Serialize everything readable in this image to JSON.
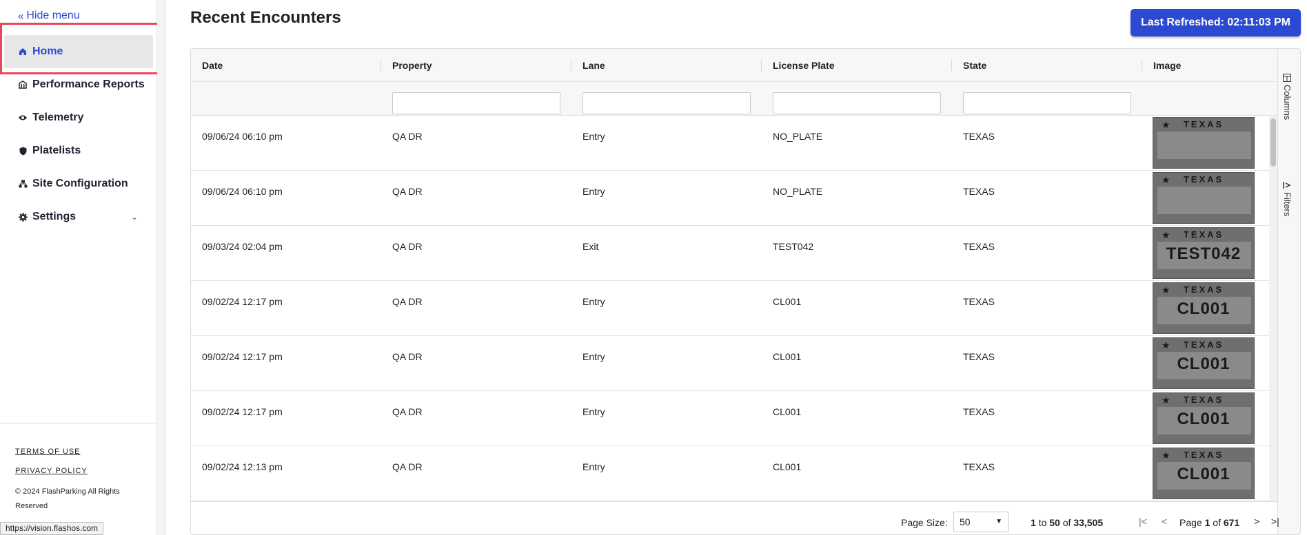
{
  "sidebar": {
    "hide_menu": "Hide menu",
    "items": [
      {
        "label": "Home",
        "icon": "home-icon"
      },
      {
        "label": "Performance Reports",
        "icon": "building-icon"
      },
      {
        "label": "Telemetry",
        "icon": "eye-icon"
      },
      {
        "label": "Platelists",
        "icon": "shield-icon"
      },
      {
        "label": "Site Configuration",
        "icon": "sitemap-icon"
      },
      {
        "label": "Settings",
        "icon": "gear-icon"
      }
    ],
    "terms": "TERMS OF USE",
    "privacy": "PRIVACY POLICY",
    "copyright": "© 2024 FlashParking All Rights Reserved"
  },
  "status_url": "https://vision.flashos.com",
  "main": {
    "title": "Recent Encounters",
    "refresh_label": "Last Refreshed: 02:11:03 PM"
  },
  "grid": {
    "columns": [
      "Date",
      "Property",
      "Lane",
      "License Plate",
      "State",
      "Image"
    ],
    "rows": [
      {
        "date": "09/06/24 06:10 pm",
        "property": "QA DR",
        "lane": "Entry",
        "plate": "NO_PLATE",
        "state": "TEXAS",
        "image_state": "TEXAS",
        "image_text": ""
      },
      {
        "date": "09/06/24 06:10 pm",
        "property": "QA DR",
        "lane": "Entry",
        "plate": "NO_PLATE",
        "state": "TEXAS",
        "image_state": "TEXAS",
        "image_text": ""
      },
      {
        "date": "09/03/24 02:04 pm",
        "property": "QA DR",
        "lane": "Exit",
        "plate": "TEST042",
        "state": "TEXAS",
        "image_state": "TEXAS",
        "image_text": "TEST042"
      },
      {
        "date": "09/02/24 12:17 pm",
        "property": "QA DR",
        "lane": "Entry",
        "plate": "CL001",
        "state": "TEXAS",
        "image_state": "TEXAS",
        "image_text": "CL001"
      },
      {
        "date": "09/02/24 12:17 pm",
        "property": "QA DR",
        "lane": "Entry",
        "plate": "CL001",
        "state": "TEXAS",
        "image_state": "TEXAS",
        "image_text": "CL001"
      },
      {
        "date": "09/02/24 12:17 pm",
        "property": "QA DR",
        "lane": "Entry",
        "plate": "CL001",
        "state": "TEXAS",
        "image_state": "TEXAS",
        "image_text": "CL001"
      },
      {
        "date": "09/02/24 12:13 pm",
        "property": "QA DR",
        "lane": "Entry",
        "plate": "CL001",
        "state": "TEXAS",
        "image_state": "TEXAS",
        "image_text": "CL001"
      },
      {
        "date": "",
        "property": "",
        "lane": "",
        "plate": "",
        "state": "",
        "image_state": "",
        "image_text": ""
      }
    ],
    "side_tabs": {
      "columns": "Columns",
      "filters": "Filters"
    }
  },
  "pager": {
    "page_size_label": "Page Size:",
    "page_size": "50",
    "range_from": "1",
    "range_to": "50",
    "range_total": "33,505",
    "page_current": "1",
    "page_total": "671"
  },
  "colors": {
    "accent": "#2c4ad1",
    "highlight": "#e9465b"
  }
}
